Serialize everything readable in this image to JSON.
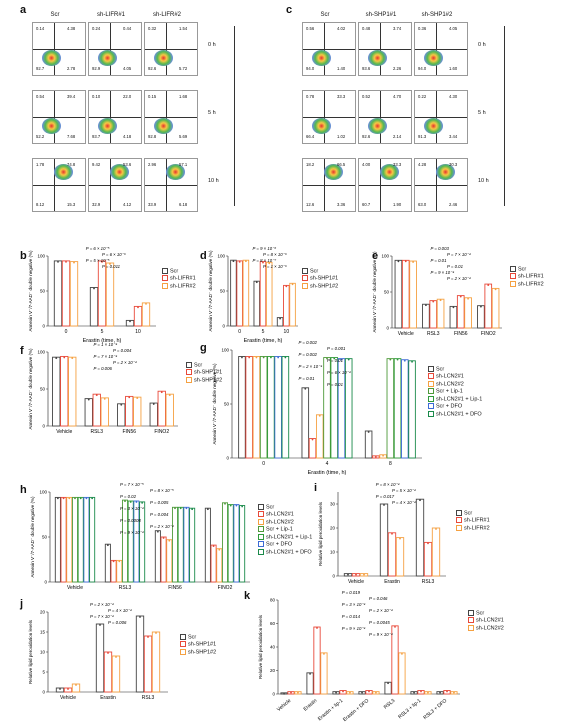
{
  "panels": {
    "a": "a",
    "b": "b",
    "c": "c",
    "d": "d",
    "e": "e",
    "f": "f",
    "g": "g",
    "h": "h",
    "i": "i",
    "j": "j",
    "k": "k"
  },
  "flow": {
    "a": {
      "cols": [
        "Scr",
        "sh-LIFR#1",
        "sh-LIFR#2"
      ],
      "rows": [
        "0 h",
        "5 h",
        "10 h"
      ],
      "quads": [
        [
          [
            "0.14",
            "4.38",
            "92.7",
            "2.78"
          ],
          [
            "0.24",
            "0.44",
            "92.9",
            "4.05"
          ],
          [
            "0.32",
            "1.54",
            "92.6",
            "5.72"
          ]
        ],
        [
          [
            "0.54",
            "39.4",
            "52.2",
            "7.68"
          ],
          [
            "0.10",
            "22.0",
            "93.7",
            "4.18"
          ],
          [
            "0.15",
            "1.68",
            "92.8",
            "5.69"
          ]
        ],
        [
          [
            "1.78",
            "74.8",
            "8.12",
            "15.3"
          ],
          [
            "9.42",
            "53.6",
            "32.9",
            "4.12"
          ],
          [
            "2.96",
            "57.1",
            "33.9",
            "6.18"
          ]
        ]
      ]
    },
    "c": {
      "cols": [
        "Scr",
        "sh-SHP1#1",
        "sh-SHP1#2"
      ],
      "rows": [
        "0 h",
        "5 h",
        "10 h"
      ],
      "quads": [
        [
          [
            "0.56",
            "4.02",
            "94.0",
            "1.40"
          ],
          [
            "0.48",
            "3.74",
            "93.6",
            "2.26"
          ],
          [
            "0.36",
            "4.05",
            "94.0",
            "1.60"
          ]
        ],
        [
          [
            "0.78",
            "33.3",
            "66.4",
            "1.02"
          ],
          [
            "0.52",
            "4.70",
            "92.6",
            "2.14"
          ],
          [
            "0.22",
            "4.30",
            "91.3",
            "3.44"
          ]
        ],
        [
          [
            "18.2",
            "66.5",
            "12.6",
            "3.36"
          ],
          [
            "4.00",
            "33.3",
            "60.7",
            "1.90"
          ],
          [
            "4.28",
            "30.3",
            "63.0",
            "2.46"
          ]
        ]
      ]
    },
    "ylabel": "7-AAD",
    "xlabel": "Annexin V (APC)",
    "treat": "Erastin"
  },
  "legends": {
    "b": [
      "Scr",
      "sh-LIFR#1",
      "sh-LIFR#2"
    ],
    "d": [
      "Scr",
      "sh-SHP1#1",
      "sh-SHP1#2"
    ],
    "e": [
      "Scr",
      "sh-LIFR#1",
      "sh-LIFR#2"
    ],
    "f": [
      "Scr",
      "sh-SHP1#1",
      "sh-SHP1#2"
    ],
    "g": [
      "Scr",
      "sh-LCN2#1",
      "sh-LCN2#2",
      "Scr + Lip-1",
      "sh-LCN2#1 + Lip-1",
      "Scr + DFO",
      "sh-LCN2#1 + DFO"
    ],
    "h": [
      "Scr",
      "sh-LCN2#1",
      "sh-LCN2#2",
      "Scr + Lip-1",
      "sh-LCN2#1 + Lip-1",
      "Scr + DFO",
      "sh-LCN2#1 + DFO"
    ],
    "i": [
      "Scr",
      "sh-LIFR#1",
      "sh-LIFR#2"
    ],
    "j": [
      "Scr",
      "sh-SHP1#1",
      "sh-SHP1#2"
    ],
    "k": [
      "Scr",
      "sh-LCN2#1",
      "sh-LCN2#2"
    ]
  },
  "colors": {
    "c3": [
      "#444444",
      "#e8493a",
      "#f5a142"
    ],
    "c7": [
      "#444444",
      "#e8493a",
      "#f5a142",
      "#4e9a3a",
      "#2f9a3a",
      "#3c6bd6",
      "#1a8a4a"
    ]
  },
  "chart_data": [
    {
      "id": "b",
      "type": "bar",
      "ylabel": "Annexin V⁻/7-AAD⁻ double negative (%)",
      "xlabel": "Erastin (time, h)",
      "categories": [
        "0",
        "5",
        "10"
      ],
      "ylim": [
        0,
        100
      ],
      "series": [
        {
          "name": "Scr",
          "values": [
            93,
            55,
            8
          ]
        },
        {
          "name": "sh-LIFR#1",
          "values": [
            93,
            93,
            28
          ]
        },
        {
          "name": "sh-LIFR#2",
          "values": [
            92,
            90,
            33
          ]
        }
      ],
      "annotations": [
        "P = 6 × 10⁻⁵",
        "P = 6 × 10⁻⁶",
        "P = 5 × 10⁻⁵",
        "P = 0.011"
      ]
    },
    {
      "id": "d",
      "type": "bar",
      "ylabel": "Annexin V⁻/7-AAD⁻ double negative (%)",
      "xlabel": "Erastin (time, h)",
      "categories": [
        "0",
        "5",
        "10"
      ],
      "ylim": [
        0,
        100
      ],
      "series": [
        {
          "name": "Scr",
          "values": [
            94,
            64,
            12
          ]
        },
        {
          "name": "sh-SHP1#1",
          "values": [
            93,
            92,
            58
          ]
        },
        {
          "name": "sh-SHP1#2",
          "values": [
            94,
            91,
            61
          ]
        }
      ],
      "annotations": [
        "P = 9 × 10⁻⁶",
        "P = 8 × 10⁻⁶",
        "P = 8 × 10⁻⁷",
        "P = 1 × 10⁻⁶"
      ]
    },
    {
      "id": "e",
      "type": "bar",
      "ylabel": "Annexin V⁻/7-AAD⁻ double negative (%)",
      "categories": [
        "Vehicle",
        "RSL3",
        "FIN56",
        "FINO2"
      ],
      "ylim": [
        0,
        100
      ],
      "series": [
        {
          "name": "Scr",
          "values": [
            94,
            33,
            30,
            31
          ]
        },
        {
          "name": "sh-LIFR#1",
          "values": [
            94,
            38,
            45,
            61
          ]
        },
        {
          "name": "sh-LIFR#2",
          "values": [
            93,
            40,
            42,
            55
          ]
        }
      ],
      "annotations": [
        "P = 0.003",
        "P = 7 × 10⁻⁴",
        "P = 0.01",
        "P = 0.01",
        "P = 9 × 10⁻⁴",
        "P = 2 × 10⁻⁴"
      ]
    },
    {
      "id": "f",
      "type": "bar",
      "ylabel": "Annexin V⁻/7-AAD⁻ double negative (%)",
      "categories": [
        "Vehicle",
        "RSL3",
        "FIN56",
        "FINO2"
      ],
      "ylim": [
        0,
        100
      ],
      "series": [
        {
          "name": "Scr",
          "values": [
            93,
            37,
            30,
            31
          ]
        },
        {
          "name": "sh-SHP1#1",
          "values": [
            94,
            43,
            40,
            47
          ]
        },
        {
          "name": "sh-SHP1#2",
          "values": [
            93,
            38,
            39,
            43
          ]
        }
      ],
      "annotations": [
        "P = 1 × 10⁻⁴",
        "P = 0.004",
        "P = 7 × 10⁻⁴",
        "P = 2 × 10⁻⁴",
        "P = 0.006"
      ]
    },
    {
      "id": "g",
      "type": "bar",
      "ylabel": "Annexin V⁻/7-AAD⁻ double negative (%)",
      "xlabel": "Erastin (time, h)",
      "categories": [
        "0",
        "4",
        "8"
      ],
      "ylim": [
        0,
        100
      ],
      "series": [
        {
          "name": "Scr",
          "values": [
            94,
            65,
            25
          ]
        },
        {
          "name": "sh-LCN2#1",
          "values": [
            94,
            18,
            2
          ]
        },
        {
          "name": "sh-LCN2#2",
          "values": [
            94,
            40,
            3
          ]
        },
        {
          "name": "Scr + Lip-1",
          "values": [
            94,
            93,
            92
          ]
        },
        {
          "name": "sh-LCN2#1 + Lip-1",
          "values": [
            94,
            93,
            92
          ]
        },
        {
          "name": "Scr + DFO",
          "values": [
            94,
            92,
            91
          ]
        },
        {
          "name": "sh-LCN2#1 + DFO",
          "values": [
            94,
            92,
            90
          ]
        }
      ],
      "annotations": [
        "P = 0.002",
        "P = 0.001",
        "P = 0.002",
        "P = 0.01",
        "P = 2 × 10⁻⁴",
        "P = 6 × 10⁻⁴",
        "P = 0.01",
        "P = 0.01"
      ]
    },
    {
      "id": "h",
      "type": "bar",
      "ylabel": "Annexin V⁻/7-AAD⁻ double negative (%)",
      "categories": [
        "Vehicle",
        "RSL3",
        "FIN56",
        "FINO2"
      ],
      "ylim": [
        0,
        100
      ],
      "series": [
        {
          "name": "Scr",
          "values": [
            94,
            42,
            57,
            82
          ]
        },
        {
          "name": "sh-LCN2#1",
          "values": [
            94,
            24,
            50,
            41
          ]
        },
        {
          "name": "sh-LCN2#2",
          "values": [
            94,
            24,
            47,
            37
          ]
        },
        {
          "name": "Scr + Lip-1",
          "values": [
            94,
            91,
            83,
            88
          ]
        },
        {
          "name": "sh-LCN2#1 + Lip-1",
          "values": [
            94,
            90,
            83,
            86
          ]
        },
        {
          "name": "Scr + DFO",
          "values": [
            94,
            90,
            83,
            86
          ]
        },
        {
          "name": "sh-LCN2#1 + DFO",
          "values": [
            94,
            89,
            82,
            85
          ]
        }
      ],
      "annotations": [
        "P = 7 × 10⁻⁵",
        "P = 8 × 10⁻⁵",
        "P = 0.02",
        "P = 0.005",
        "P = 3 × 10⁻⁴",
        "P = 0.004",
        "P = 0.0008",
        "P = 2 × 10⁻⁴",
        "P = 9 × 10⁻⁴",
        "P = 0.001"
      ]
    },
    {
      "id": "i",
      "type": "bar",
      "ylabel": "Relative lipid peroxidation levels",
      "categories": [
        "Vehicle",
        "Erastin",
        "RSL3"
      ],
      "ylim": [
        0,
        35
      ],
      "series": [
        {
          "name": "Scr",
          "values": [
            1,
            30,
            32
          ]
        },
        {
          "name": "sh-LIFR#1",
          "values": [
            1,
            18,
            14
          ]
        },
        {
          "name": "sh-LIFR#2",
          "values": [
            1,
            16,
            20
          ]
        }
      ],
      "annotations": [
        "P = 8 × 10⁻⁴",
        "P = 5 × 10⁻⁴",
        "P = 0.017",
        "P = 4 × 10⁻⁴"
      ]
    },
    {
      "id": "j",
      "type": "bar",
      "ylabel": "Relative lipid peroxidation levels",
      "categories": [
        "Vehicle",
        "Erastin",
        "RSL3"
      ],
      "ylim": [
        0,
        20
      ],
      "series": [
        {
          "name": "Scr",
          "values": [
            1,
            17,
            19
          ]
        },
        {
          "name": "sh-SHP1#1",
          "values": [
            1,
            10,
            14
          ]
        },
        {
          "name": "sh-SHP1#2",
          "values": [
            2,
            9,
            15
          ]
        }
      ],
      "annotations": [
        "P = 2 × 10⁻⁴",
        "P = 4 × 10⁻⁴",
        "P = 7 × 10⁻⁴",
        "P = 0.006"
      ]
    },
    {
      "id": "k",
      "type": "bar",
      "ylabel": "Relative lipid peroxidation levels",
      "categories": [
        "Vehicle",
        "Erastin",
        "Erastin + lip-1",
        "Erastin + DFO",
        "RSL3",
        "RSL3 + lip-1",
        "RSL3 + DFO"
      ],
      "ylim": [
        0,
        80
      ],
      "series": [
        {
          "name": "Scr",
          "values": [
            1,
            18,
            2,
            2,
            10,
            2,
            2
          ]
        },
        {
          "name": "sh-LCN2#1",
          "values": [
            2,
            57,
            3,
            3,
            58,
            3,
            3
          ]
        },
        {
          "name": "sh-LCN2#2",
          "values": [
            2,
            35,
            2,
            2,
            35,
            2,
            2
          ]
        }
      ],
      "annotations": [
        "P = 0.019",
        "P = 0.046",
        "P = 3 × 10⁻⁴",
        "P = 2 × 10⁻⁴",
        "P = 0.014",
        "P = 0.0045",
        "P = 9 × 10⁻⁴",
        "P = 9 × 10⁻⁴"
      ]
    }
  ]
}
